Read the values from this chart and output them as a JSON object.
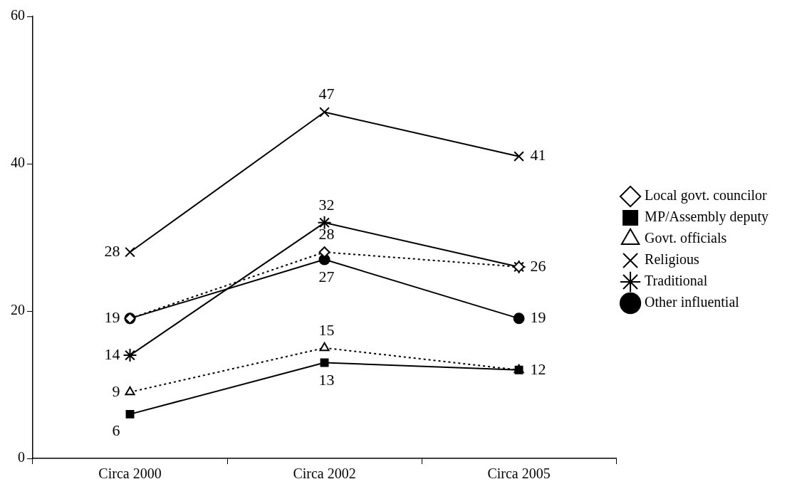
{
  "chart_data": {
    "type": "line",
    "categories": [
      "Circa 2000",
      "Circa 2002",
      "Circa 2005"
    ],
    "series": [
      {
        "name": "Local govt. councilor",
        "color": "#000000",
        "marker": "diamond",
        "line_style": "dotted",
        "values": [
          19,
          28,
          26
        ],
        "value_labels": [
          null,
          "28",
          null
        ]
      },
      {
        "name": "MP/Assembly deputy",
        "color": "#000000",
        "marker": "square",
        "line_style": "solid",
        "values": [
          6,
          13,
          12
        ],
        "value_labels": [
          "6",
          "13",
          "12"
        ]
      },
      {
        "name": "Govt. officials",
        "color": "#000000",
        "marker": "triangle",
        "line_style": "dotted",
        "values": [
          9,
          15,
          12
        ],
        "value_labels": [
          "9",
          "15",
          null
        ]
      },
      {
        "name": "Religious",
        "color": "#000000",
        "marker": "cross",
        "line_style": "solid",
        "values": [
          28,
          47,
          41
        ],
        "value_labels": [
          "28",
          "47",
          "41"
        ]
      },
      {
        "name": "Traditional",
        "color": "#000000",
        "marker": "cross",
        "line_style": "solid",
        "values": [
          14,
          32,
          26
        ],
        "value_labels": [
          "14",
          "32",
          "26"
        ]
      },
      {
        "name": "Other influential",
        "color": "#000000",
        "marker": "circle",
        "line_style": "solid",
        "values": [
          19,
          27,
          19
        ],
        "value_labels": [
          "19",
          "27",
          "19"
        ]
      }
    ],
    "ylim": [
      0,
      60
    ],
    "yticks": [
      0,
      20,
      40,
      60
    ],
    "grid": false,
    "legend": "right"
  }
}
